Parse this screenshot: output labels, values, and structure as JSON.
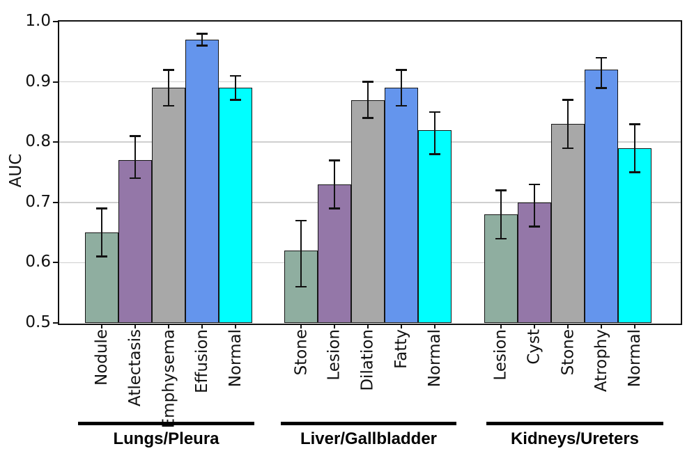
{
  "chart_data": {
    "type": "bar",
    "title": "",
    "ylabel": "AUC",
    "ylim": [
      0.5,
      1.0
    ],
    "yticks": [
      0.5,
      0.6,
      0.7,
      0.8,
      0.9,
      1.0
    ],
    "grid": true,
    "error_bars": true,
    "bar_colors": [
      "#8FAEA0",
      "#9477A8",
      "#A8A8A8",
      "#6495ED",
      "#00FFFF"
    ],
    "axis_color": "#111111",
    "grid_color": "#cfcfcf",
    "groups": [
      {
        "label": "Lungs/Pleura",
        "categories": [
          "Nodule",
          "Atlectasis",
          "Emphysema",
          "Effusion",
          "Normal"
        ],
        "values": [
          0.65,
          0.77,
          0.89,
          0.97,
          0.89
        ],
        "err_low": [
          0.61,
          0.74,
          0.86,
          0.96,
          0.87
        ],
        "err_high": [
          0.69,
          0.81,
          0.92,
          0.98,
          0.91
        ]
      },
      {
        "label": "Liver/Gallbladder",
        "categories": [
          "Stone",
          "Lesion",
          "Dilation",
          "Fatty",
          "Normal"
        ],
        "values": [
          0.62,
          0.73,
          0.87,
          0.89,
          0.82
        ],
        "err_low": [
          0.56,
          0.69,
          0.84,
          0.86,
          0.78
        ],
        "err_high": [
          0.67,
          0.77,
          0.9,
          0.92,
          0.85
        ]
      },
      {
        "label": "Kidneys/Ureters",
        "categories": [
          "Lesion",
          "Cyst",
          "Stone",
          "Atrophy",
          "Normal"
        ],
        "values": [
          0.68,
          0.7,
          0.83,
          0.92,
          0.79
        ],
        "err_low": [
          0.64,
          0.66,
          0.79,
          0.89,
          0.75
        ],
        "err_high": [
          0.72,
          0.73,
          0.87,
          0.94,
          0.83
        ]
      }
    ]
  }
}
